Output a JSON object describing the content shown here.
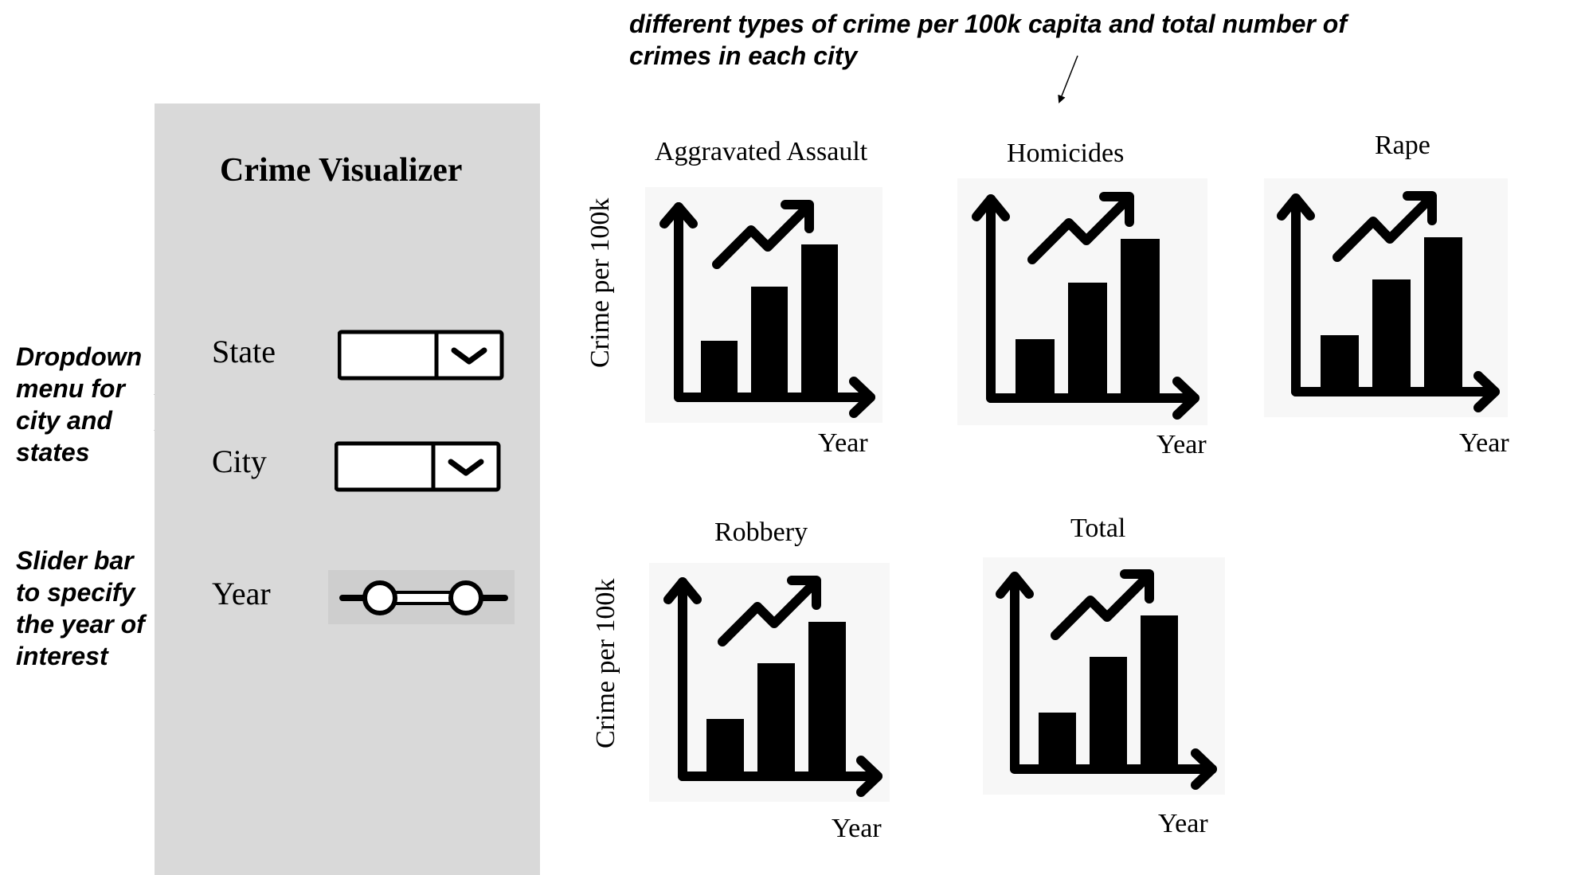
{
  "annotations": {
    "top": "different types of crime per 100k capita and total number of crimes in each city",
    "top_line1": "different types of crime per 100k capita and total number of",
    "top_line2": "crimes in each city",
    "dropdown_note": [
      "Dropdown",
      "menu for",
      "city and",
      "states"
    ],
    "slider_note": [
      "Slider bar",
      "to specify",
      "the year of",
      "interest"
    ]
  },
  "panel": {
    "title": "Crime Visualizer",
    "state_label": "State",
    "city_label": "City",
    "year_label": "Year"
  },
  "plots": [
    {
      "title": "Aggravated Assault",
      "xlabel": "Year",
      "ylabel": "Crime per 100k"
    },
    {
      "title": "Homicides",
      "xlabel": "Year",
      "ylabel": ""
    },
    {
      "title": "Rape",
      "xlabel": "Year",
      "ylabel": ""
    },
    {
      "title": "Robbery",
      "xlabel": "Year",
      "ylabel": "Crime per 100k"
    },
    {
      "title": "Total",
      "xlabel": "Year",
      "ylabel": ""
    }
  ],
  "icons": {
    "chart": "bar-chart-trend-icon",
    "dropdown": "chevron-down-icon",
    "slider": "range-slider-icon"
  },
  "colors": {
    "panel": "#d9d9d9",
    "icon_bg": "#f7f7f7",
    "ink": "#000000"
  }
}
